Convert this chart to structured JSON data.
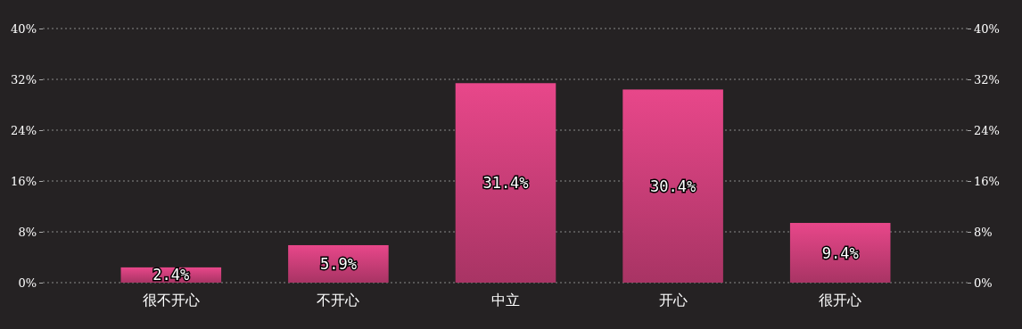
{
  "chart_data": {
    "type": "bar",
    "categories": [
      "很不开心",
      "不开心",
      "中立",
      "开心",
      "很开心"
    ],
    "series": [
      {
        "color": "#e8478a",
        "values": [
          2.4,
          5.9,
          31.4,
          30.4,
          9.4
        ],
        "value_labels": [
          "2.4%",
          "5.9%",
          "31.4%",
          "30.4%",
          "9.4%"
        ]
      }
    ],
    "ylim": [
      0,
      40
    ],
    "yticks": [
      {
        "value": 0,
        "label": "0%"
      },
      {
        "value": 8,
        "label": "8%"
      },
      {
        "value": 16,
        "label": "16%"
      },
      {
        "value": 24,
        "label": "24%"
      },
      {
        "value": 32,
        "label": "32%"
      },
      {
        "value": 40,
        "label": "40%"
      }
    ],
    "y2lim": [
      0,
      40
    ],
    "y2ticks": [
      {
        "value": 0,
        "label": "0%"
      },
      {
        "value": 8,
        "label": "8%"
      },
      {
        "value": 16,
        "label": "16%"
      },
      {
        "value": 24,
        "label": "24%"
      },
      {
        "value": 32,
        "label": "32%"
      },
      {
        "value": 40,
        "label": "40%"
      }
    ],
    "grid": "y"
  }
}
